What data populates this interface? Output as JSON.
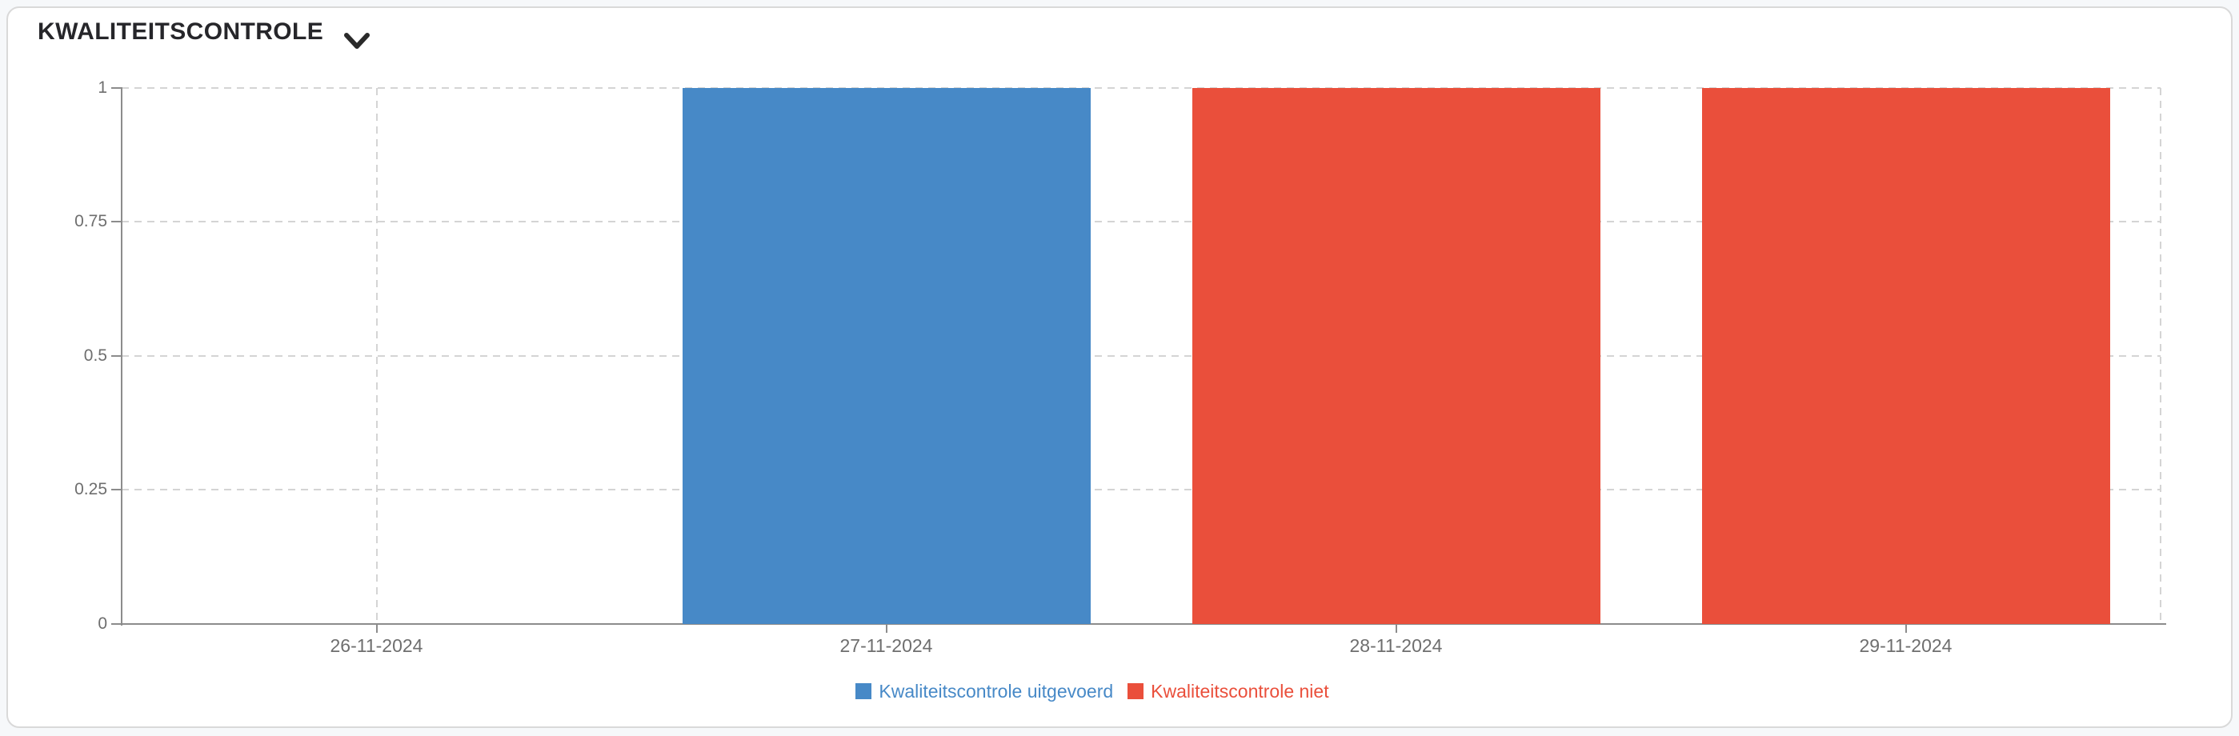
{
  "header": {
    "title": "KWALITEITSCONTROLE"
  },
  "chart_data": {
    "type": "bar",
    "title": "KWALITEITSCONTROLE",
    "categories": [
      "26-11-2024",
      "27-11-2024",
      "28-11-2024",
      "29-11-2024"
    ],
    "series": [
      {
        "name": "Kwaliteitscontrole uitgevoerd",
        "color": "#4789C7",
        "values": [
          0,
          1,
          0,
          0
        ]
      },
      {
        "name": "Kwaliteitscontrole niet",
        "color": "#EA4F3B",
        "values": [
          0,
          0,
          1,
          1
        ]
      }
    ],
    "xlabel": "",
    "ylabel": "",
    "ylim": [
      0,
      1
    ],
    "yticks": [
      0,
      0.25,
      0.5,
      0.75,
      1
    ],
    "ytick_labels": [
      "0",
      "0.25",
      "0.5",
      "0.75",
      "1"
    ],
    "grid": "dashed",
    "legend_position": "bottom"
  },
  "colors": {
    "page_bg": "#f6f8fa",
    "card_bg": "#ffffff",
    "card_border": "#d9d9d9",
    "title": "#26262a",
    "chevron": "#2a2a2a",
    "axis": "#8c8c8c",
    "grid": "#d4d4d4",
    "tick_label": "#6e6e6e"
  }
}
